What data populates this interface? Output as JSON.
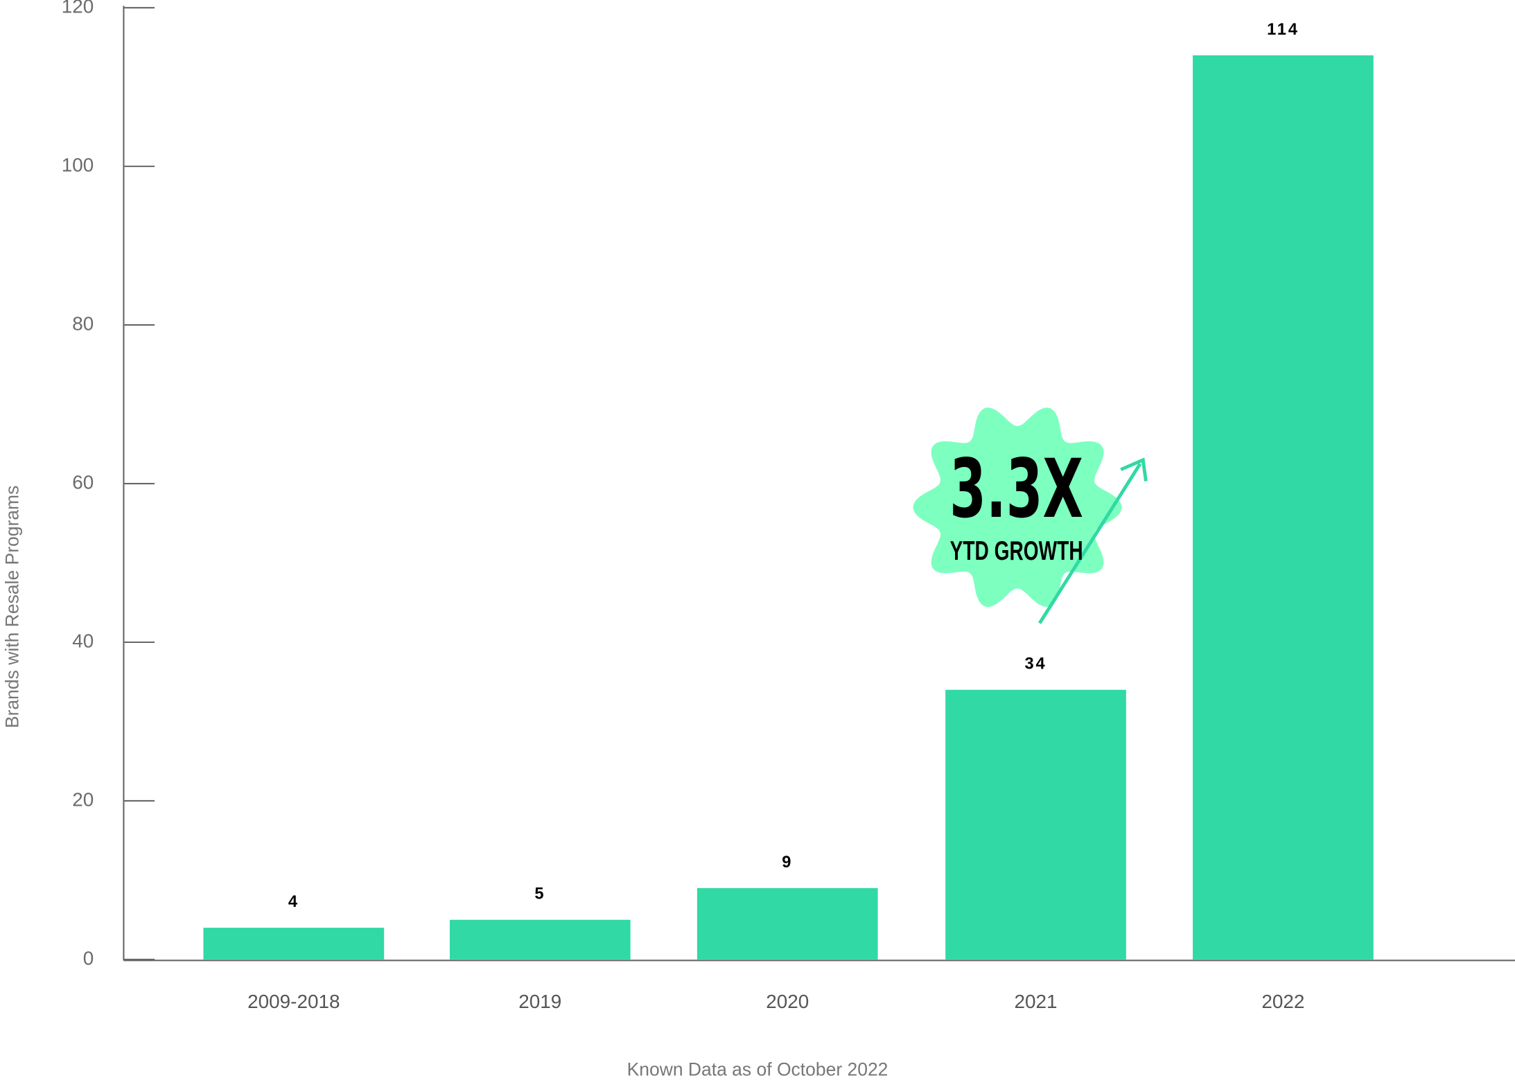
{
  "chart_data": {
    "type": "bar",
    "categories": [
      "2009-2018",
      "2019",
      "2020",
      "2021",
      "2022"
    ],
    "values": [
      4,
      5,
      9,
      34,
      114
    ],
    "color": "#31d9a4",
    "ylim": [
      0,
      120
    ],
    "yticks": [
      0,
      20,
      40,
      60,
      80,
      100,
      120
    ],
    "y_label": "Brands with Resale Programs",
    "x_label": "Known Data as of October 2022",
    "annotations": [
      "3.3X",
      "YTD GROWTH"
    ]
  }
}
